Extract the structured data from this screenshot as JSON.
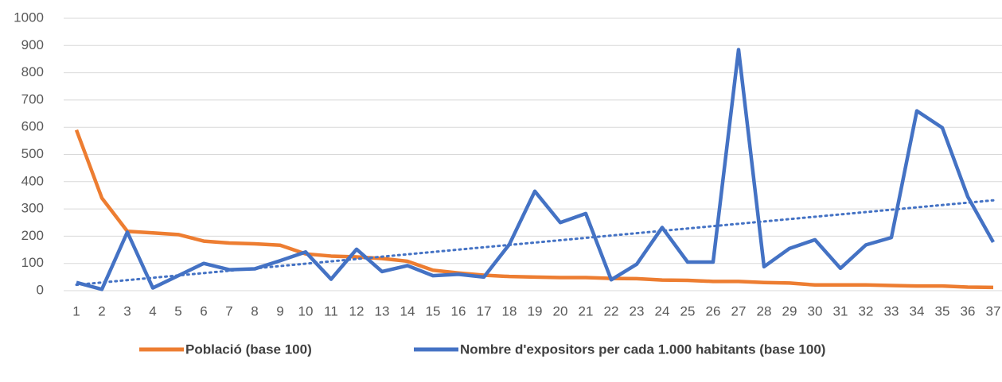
{
  "chart_data": {
    "type": "line",
    "categories": [
      "1",
      "2",
      "3",
      "4",
      "5",
      "6",
      "7",
      "8",
      "9",
      "10",
      "11",
      "12",
      "13",
      "14",
      "15",
      "16",
      "17",
      "18",
      "19",
      "20",
      "21",
      "22",
      "23",
      "24",
      "25",
      "26",
      "27",
      "28",
      "29",
      "30",
      "31",
      "32",
      "33",
      "34",
      "35",
      "36",
      "37"
    ],
    "series": [
      {
        "name": "Població (base 100)",
        "color": "#ed7d31",
        "values": [
          590,
          340,
          218,
          212,
          206,
          182,
          175,
          172,
          167,
          135,
          127,
          124,
          118,
          108,
          75,
          65,
          57,
          52,
          50,
          48,
          48,
          45,
          44,
          39,
          38,
          34,
          34,
          30,
          28,
          21,
          21,
          21,
          19,
          17,
          17,
          13,
          12
        ]
      },
      {
        "name": "Nombre d'expositors per cada 1.000 habitants (base 100)",
        "color": "#4472c4",
        "values": [
          30,
          5,
          215,
          10,
          55,
          100,
          77,
          80,
          110,
          142,
          42,
          152,
          70,
          92,
          55,
          60,
          50,
          170,
          365,
          250,
          283,
          40,
          97,
          232,
          105,
          105,
          885,
          88,
          155,
          187,
          82,
          168,
          195,
          660,
          598,
          345,
          178
        ],
        "trendline": "linear"
      }
    ],
    "ylim": [
      0,
      1000
    ],
    "yticks": [
      0,
      100,
      200,
      300,
      400,
      500,
      600,
      700,
      800,
      900,
      1000
    ],
    "grid": true,
    "legend": "bottom"
  }
}
